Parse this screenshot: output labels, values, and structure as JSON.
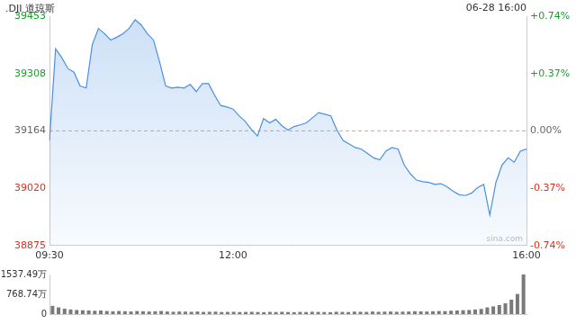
{
  "chart_data": [
    {
      "type": "line",
      "title": ".DJI 道琼斯",
      "subtitle": "06-28 16:00",
      "annotations": [
        "sina.com"
      ],
      "categories": [
        "09:30",
        null,
        null,
        null,
        null,
        null,
        null,
        null,
        null,
        null,
        null,
        null,
        null,
        null,
        null,
        null,
        null,
        null,
        null,
        null,
        null,
        null,
        null,
        null,
        null,
        null,
        null,
        null,
        null,
        null,
        "12:00",
        null,
        null,
        null,
        null,
        null,
        null,
        null,
        null,
        null,
        null,
        null,
        null,
        null,
        null,
        null,
        null,
        null,
        null,
        null,
        null,
        null,
        null,
        null,
        null,
        null,
        null,
        null,
        null,
        null,
        null,
        null,
        null,
        null,
        null,
        null,
        null,
        null,
        null,
        null,
        null,
        null,
        null,
        null,
        null,
        null,
        null,
        null,
        "16:00"
      ],
      "values": [
        39140,
        39371,
        39349,
        39321,
        39312,
        39277,
        39272,
        39382,
        39422,
        39409,
        39393,
        39400,
        39409,
        39422,
        39444,
        39431,
        39409,
        39393,
        39338,
        39277,
        39272,
        39274,
        39272,
        39281,
        39263,
        39283,
        39283,
        39254,
        39228,
        39224,
        39219,
        39202,
        39188,
        39168,
        39151,
        39195,
        39184,
        39193,
        39177,
        39166,
        39175,
        39179,
        39184,
        39197,
        39210,
        39206,
        39202,
        39166,
        39140,
        39131,
        39122,
        39118,
        39107,
        39096,
        39091,
        39113,
        39122,
        39118,
        39078,
        39056,
        39040,
        39036,
        39034,
        39029,
        39031,
        39023,
        39012,
        39003,
        39001,
        39007,
        39021,
        39029,
        38952,
        39034,
        39078,
        39096,
        39085,
        39113,
        39118
      ],
      "color": "#4a8fe0",
      "previous_close": 39164,
      "ylim": [
        38875,
        39453
      ],
      "yticks": [
        38875,
        39020,
        39164,
        39308,
        39453
      ],
      "y2lim": [
        -0.74,
        0.74
      ],
      "y2ticks": [
        {
          "value": -0.74,
          "label": "-0.74%"
        },
        {
          "value": -0.37,
          "label": "-0.37%"
        },
        {
          "value": 0,
          "label": "0.00%"
        },
        {
          "value": 0.37,
          "label": "+0.37%"
        },
        {
          "value": 0.74,
          "label": "+0.74%"
        }
      ],
      "grid": false
    },
    {
      "type": "bar",
      "categories": [
        "09:30",
        null,
        null,
        null,
        null,
        null,
        null,
        null,
        null,
        null,
        null,
        null,
        null,
        null,
        null,
        null,
        null,
        null,
        null,
        null,
        null,
        null,
        null,
        null,
        null,
        null,
        null,
        null,
        null,
        null,
        "12:00",
        null,
        null,
        null,
        null,
        null,
        null,
        null,
        null,
        null,
        null,
        null,
        null,
        null,
        null,
        null,
        null,
        null,
        null,
        null,
        null,
        null,
        null,
        null,
        null,
        null,
        null,
        null,
        null,
        null,
        null,
        null,
        null,
        null,
        null,
        null,
        null,
        null,
        null,
        null,
        null,
        null,
        null,
        null,
        null,
        null,
        null,
        null,
        "16:00"
      ],
      "values": [
        320,
        260,
        210,
        180,
        160,
        150,
        140,
        130,
        140,
        120,
        110,
        120,
        110,
        100,
        120,
        110,
        100,
        110,
        120,
        100,
        90,
        100,
        95,
        90,
        100,
        85,
        90,
        95,
        80,
        85,
        90,
        80,
        85,
        90,
        80,
        75,
        85,
        80,
        90,
        80,
        75,
        85,
        80,
        90,
        85,
        80,
        75,
        90,
        85,
        80,
        95,
        90,
        85,
        100,
        90,
        95,
        100,
        90,
        95,
        100,
        110,
        105,
        100,
        110,
        120,
        115,
        130,
        140,
        150,
        160,
        180,
        200,
        260,
        300,
        350,
        420,
        560,
        780,
        1537.49
      ],
      "color": "#7a7a7a",
      "ylim": [
        0,
        1537.49
      ],
      "yticks": [
        0,
        {
          "value": 768.74,
          "label": "768.74万"
        },
        {
          "value": 1537.49,
          "label": "1537.49万"
        }
      ],
      "tick_labels": "y",
      "grid": false
    }
  ]
}
